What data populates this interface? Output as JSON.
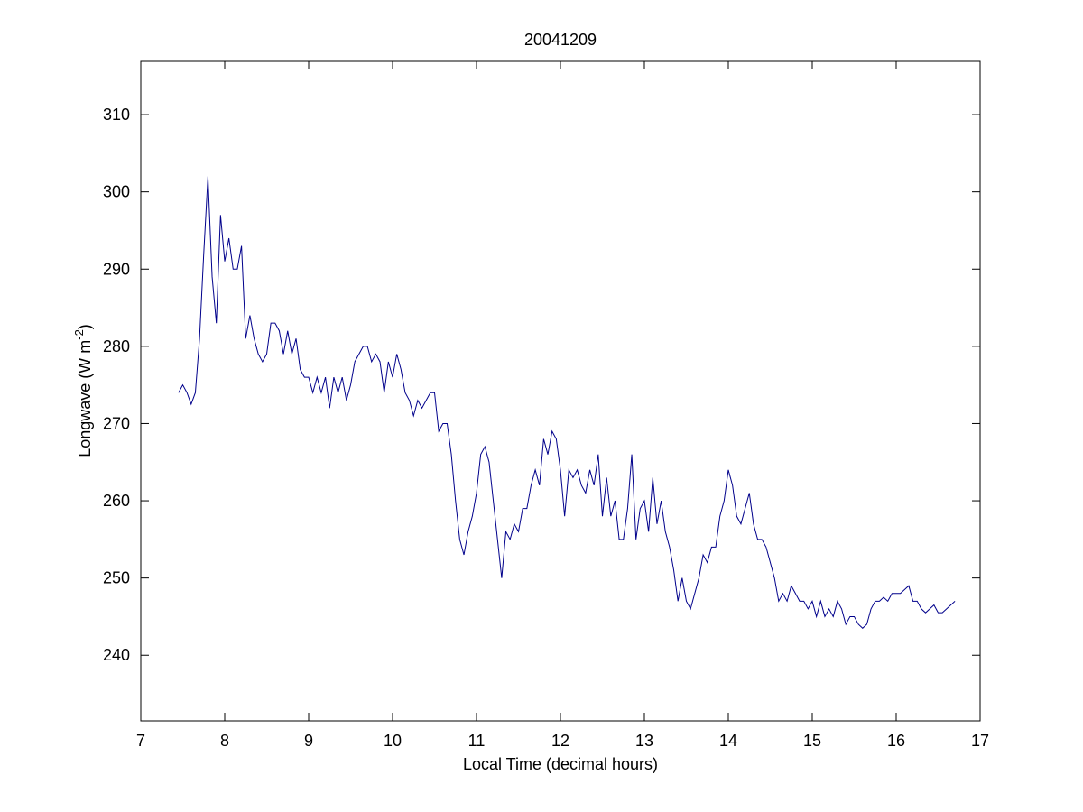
{
  "chart_data": {
    "type": "line",
    "title": "20041209",
    "xlabel": "Local Time (decimal hours)",
    "ylabel": [
      "Longwave (W m",
      "-2",
      ")"
    ],
    "x": [
      7.45,
      7.5,
      7.55,
      7.6,
      7.65,
      7.7,
      7.75,
      7.8,
      7.85,
      7.9,
      7.95,
      8,
      8.05,
      8.1,
      8.15,
      8.2,
      8.25,
      8.3,
      8.35,
      8.4,
      8.45,
      8.5,
      8.55,
      8.6,
      8.65,
      8.7,
      8.75,
      8.8,
      8.85,
      8.9,
      8.95,
      9,
      9.05,
      9.1,
      9.15,
      9.2,
      9.25,
      9.3,
      9.35,
      9.4,
      9.45,
      9.5,
      9.55,
      9.6,
      9.65,
      9.7,
      9.75,
      9.8,
      9.85,
      9.9,
      9.95,
      10,
      10.05,
      10.1,
      10.15,
      10.2,
      10.25,
      10.3,
      10.35,
      10.4,
      10.45,
      10.5,
      10.55,
      10.6,
      10.65,
      10.7,
      10.75,
      10.8,
      10.85,
      10.9,
      10.95,
      11,
      11.05,
      11.1,
      11.15,
      11.2,
      11.25,
      11.3,
      11.35,
      11.4,
      11.45,
      11.5,
      11.55,
      11.6,
      11.65,
      11.7,
      11.75,
      11.8,
      11.85,
      11.9,
      11.95,
      12,
      12.05,
      12.1,
      12.15,
      12.2,
      12.25,
      12.3,
      12.35,
      12.4,
      12.45,
      12.5,
      12.55,
      12.6,
      12.65,
      12.7,
      12.75,
      12.8,
      12.85,
      12.9,
      12.95,
      13,
      13.05,
      13.1,
      13.15,
      13.2,
      13.25,
      13.3,
      13.35,
      13.4,
      13.45,
      13.5,
      13.55,
      13.6,
      13.65,
      13.7,
      13.75,
      13.8,
      13.85,
      13.9,
      13.95,
      14,
      14.05,
      14.1,
      14.15,
      14.2,
      14.25,
      14.3,
      14.35,
      14.4,
      14.45,
      14.5,
      14.55,
      14.6,
      14.65,
      14.7,
      14.75,
      14.8,
      14.85,
      14.9,
      14.95,
      15,
      15.05,
      15.1,
      15.15,
      15.2,
      15.25,
      15.3,
      15.35,
      15.4,
      15.45,
      15.5,
      15.55,
      15.6,
      15.65,
      15.7,
      15.75,
      15.8,
      15.85,
      15.9,
      15.95,
      16,
      16.05,
      16.1,
      16.15,
      16.2,
      16.25,
      16.3,
      16.35,
      16.4,
      16.45,
      16.5,
      16.55,
      16.6,
      16.65,
      16.7
    ],
    "series": [
      {
        "color": "#00008b",
        "values": [
          274,
          275,
          274,
          272.5,
          274,
          281,
          292,
          302,
          289,
          283,
          297,
          291,
          294,
          290,
          290,
          293,
          281,
          284,
          281,
          279,
          278,
          279,
          283,
          283,
          282,
          279,
          282,
          279,
          281,
          277,
          276,
          276,
          274,
          276,
          274,
          276,
          272,
          276,
          274,
          276,
          273,
          275,
          278,
          279,
          280,
          280,
          278,
          279,
          278,
          274,
          278,
          276,
          279,
          277,
          274,
          273,
          271,
          273,
          272,
          273,
          274,
          274,
          269,
          270,
          270,
          266,
          260,
          255,
          253,
          256,
          258,
          261,
          266,
          267,
          265,
          260,
          255,
          250,
          256,
          255,
          257,
          256,
          259,
          259,
          262,
          264,
          262,
          268,
          266,
          269,
          268,
          264,
          258,
          264,
          263,
          264,
          262,
          261,
          264,
          262,
          266,
          258,
          263,
          258,
          260,
          255,
          255,
          259,
          266,
          255,
          259,
          260,
          256,
          263,
          257,
          260,
          256,
          254,
          251,
          247,
          250,
          247,
          246,
          248,
          250,
          253,
          252,
          254,
          254,
          258,
          260,
          264,
          262,
          258,
          257,
          259,
          261,
          257,
          255,
          255,
          254,
          252,
          250,
          247,
          248,
          247,
          249,
          248,
          247,
          247,
          246,
          247,
          245,
          247,
          245,
          246,
          245,
          247,
          246,
          244,
          245,
          245,
          244,
          243.5,
          244,
          246,
          247,
          247,
          247.5,
          247,
          248,
          248,
          248,
          248.5,
          249,
          247,
          247,
          246,
          245.5,
          246,
          246.5,
          245.5,
          245.5,
          246,
          246.5,
          247
        ]
      }
    ],
    "xlim": [
      7,
      17
    ],
    "xticks": [
      7,
      8,
      9,
      10,
      11,
      12,
      13,
      14,
      15,
      16,
      17
    ],
    "ylim": [
      231.5,
      316.9
    ],
    "yticks": [
      240,
      250,
      260,
      270,
      280,
      290,
      300,
      310
    ],
    "grid": false
  }
}
